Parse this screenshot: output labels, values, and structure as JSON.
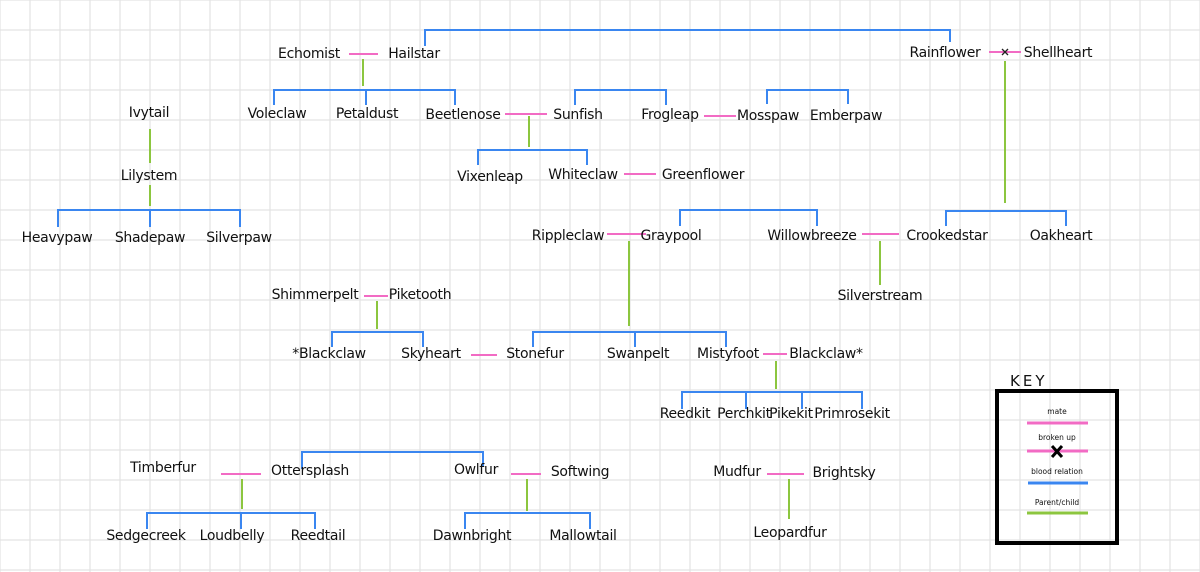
{
  "colors": {
    "grid": "#e3e3e3",
    "mate": "#f26bc4",
    "blood_relation": "#3a86f0",
    "parent_child": "#8cc63f",
    "text": "#111111"
  },
  "people": [
    "Echomist",
    "Hailstar",
    "Rainflower",
    "Shellheart",
    "Ivytail",
    "Voleclaw",
    "Petaldust",
    "Beetlenose",
    "Sunfish",
    "Frogleap",
    "Mosspaw",
    "Emberpaw",
    "Lilystem",
    "Vixenleap",
    "Whiteclaw",
    "Greenflower",
    "Heavypaw",
    "Shadepaw",
    "Silverpaw",
    "Rippleclaw",
    "Graypool",
    "Willowbreeze",
    "Crookedstar",
    "Oakheart",
    "Shimmerpelt",
    "Piketooth",
    "Silverstream",
    "*Blackclaw",
    "Skyheart",
    "Stonefur",
    "Swanpelt",
    "Mistyfoot",
    "Blackclaw*",
    "Reedkit",
    "Perchkit",
    "Pikekit",
    "Primrosekit",
    "Timberfur",
    "Ottersplash",
    "Owlfur",
    "Softwing",
    "Mudfur",
    "Brightsky",
    "Sedgecreek",
    "Loudbelly",
    "Reedtail",
    "Dawnbright",
    "Mallowtail",
    "Leopardfur"
  ],
  "key": {
    "title": "KEY",
    "items": [
      {
        "label": "mate",
        "type": "mate"
      },
      {
        "label": "broken up",
        "type": "broken-up"
      },
      {
        "label": "blood relation",
        "type": "blood-relation"
      },
      {
        "label": "Parent/child",
        "type": "parent-child"
      }
    ]
  }
}
